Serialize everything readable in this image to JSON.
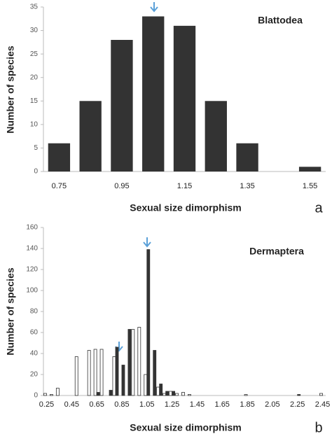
{
  "chart_data": [
    {
      "type": "bar",
      "title": "Blattodea",
      "x_label": "Sexual size dimorphism",
      "y_label": "Number of species",
      "panel_label": "a",
      "categories": [
        "0.75",
        null,
        "0.95",
        null,
        "1.15",
        null,
        "1.35",
        null,
        "1.55"
      ],
      "values": [
        6,
        15,
        28,
        33,
        31,
        15,
        6,
        0,
        1
      ],
      "color": "#333333",
      "ylim": [
        0,
        35
      ],
      "yticks": [
        0,
        5,
        10,
        15,
        20,
        25,
        30,
        35
      ],
      "grid": false
    },
    {
      "type": "grouped-bar",
      "title": "Dermaptera",
      "x_label": "Sexual size dimorphism",
      "y_label": "Number of species",
      "panel_label": "b",
      "categories": [
        "0.25",
        null,
        null,
        null,
        "0.45",
        null,
        null,
        null,
        "0.65",
        null,
        null,
        null,
        "0.85",
        null,
        null,
        null,
        "1.05",
        null,
        null,
        null,
        "1.25",
        null,
        null,
        null,
        "1.45",
        null,
        null,
        null,
        "1.65",
        null,
        null,
        null,
        "1.85",
        null,
        null,
        null,
        "2.05",
        null,
        null,
        null,
        "2.25",
        null,
        null,
        null,
        "2.45"
      ],
      "series": [
        {
          "color": "#ffffff",
          "values": [
            2,
            1,
            7,
            0,
            0,
            37,
            0,
            43,
            44,
            44,
            0,
            37,
            0,
            0,
            63,
            65,
            20,
            0,
            8,
            2,
            4,
            2,
            3,
            1,
            0,
            0,
            0,
            0,
            0,
            0,
            0,
            0,
            1,
            0,
            0,
            0,
            0,
            0,
            0,
            0,
            0,
            0,
            0,
            0,
            2
          ]
        },
        {
          "color": "#333333",
          "values": [
            0,
            0,
            0,
            0,
            0,
            0,
            0,
            0,
            3,
            0,
            5,
            46,
            29,
            63,
            0,
            0,
            139,
            43,
            11,
            4,
            4,
            0,
            0,
            0,
            0,
            0,
            0,
            0,
            0,
            0,
            0,
            0,
            0,
            0,
            0,
            0,
            0,
            0,
            0,
            0,
            1,
            0,
            0,
            0,
            0
          ]
        }
      ],
      "ylim": [
        0,
        160
      ],
      "yticks": [
        0,
        20,
        40,
        60,
        80,
        100,
        120,
        140,
        160
      ],
      "grid": false
    }
  ]
}
